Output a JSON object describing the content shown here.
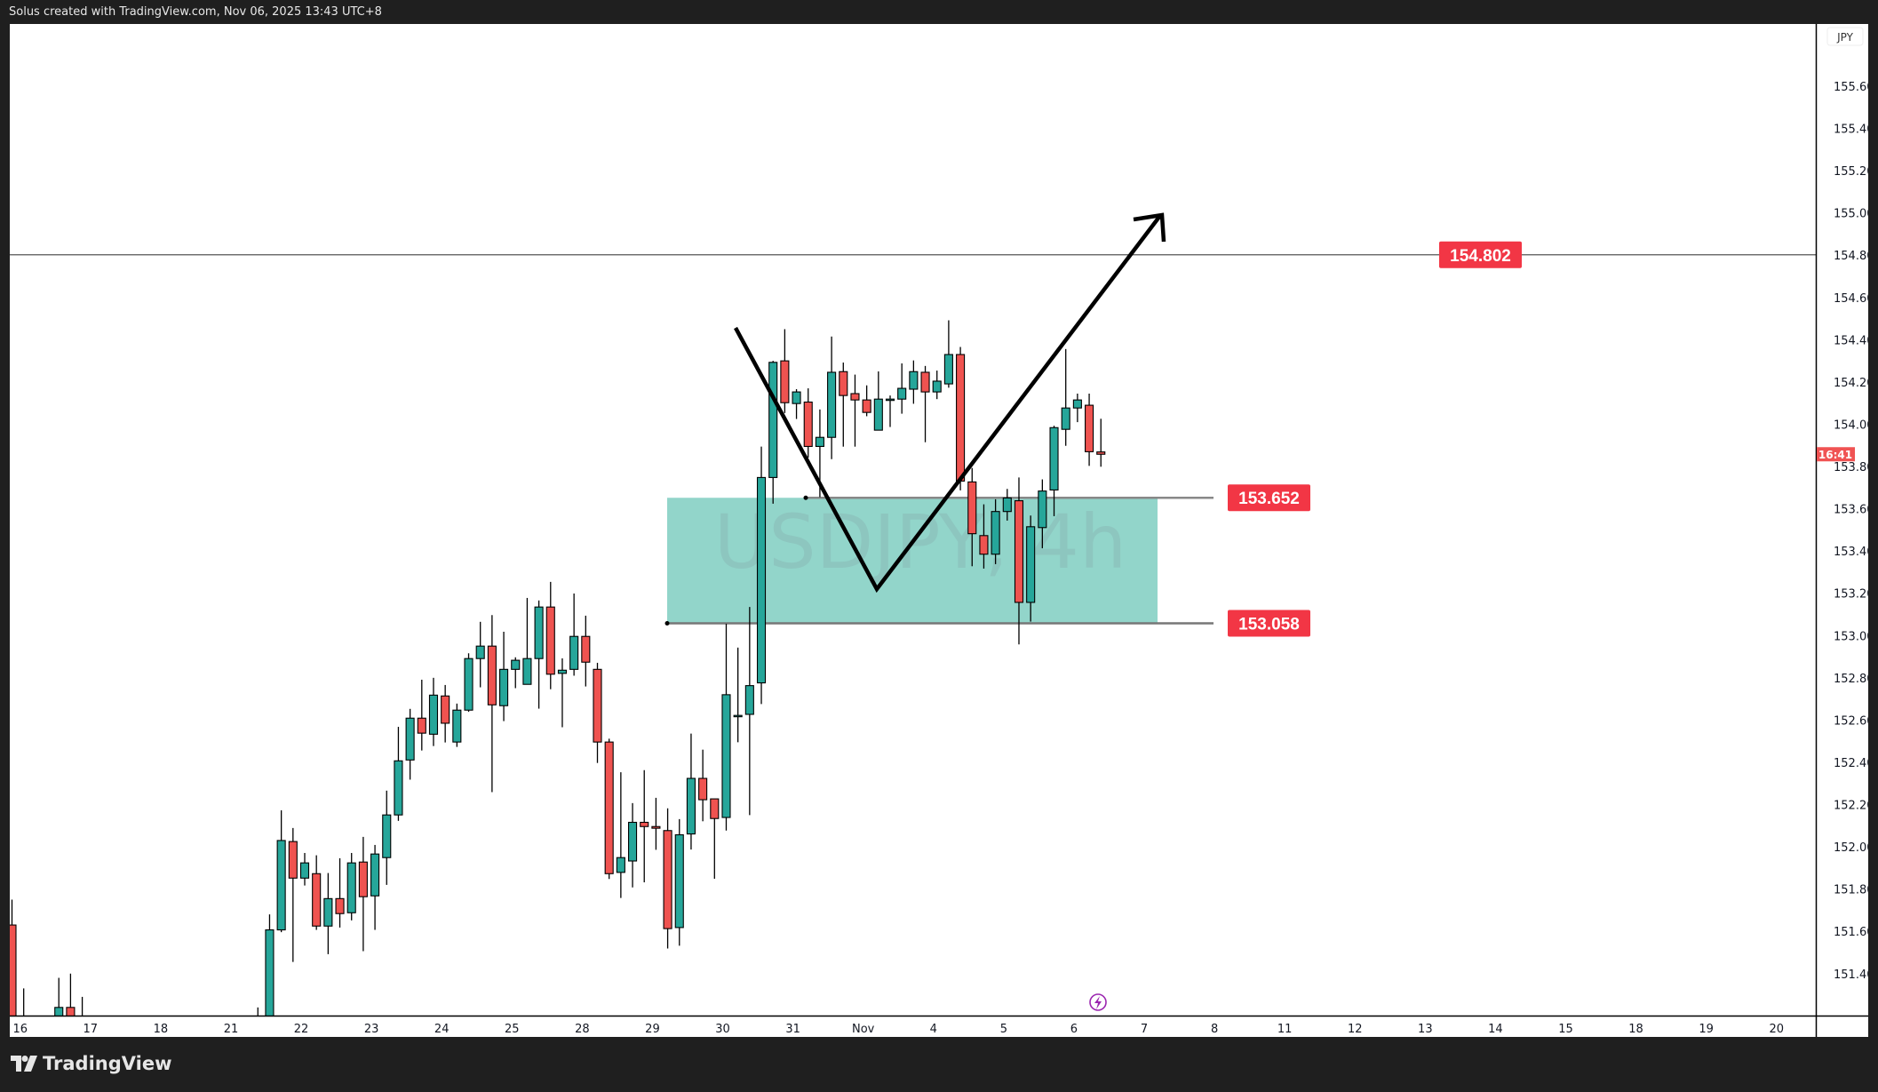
{
  "header": {
    "caption": "Solus created with TradingView.com, Nov 06, 2025 13:43 UTC+8"
  },
  "footer": {
    "brand": "TradingView"
  },
  "colors": {
    "up": "#26a69a",
    "down": "#ef5350",
    "zone": "#92d5ca",
    "label": "#f23645",
    "countdown": "#f05353",
    "lightning": "#9c27b0"
  },
  "chart_data": {
    "type": "candlestick",
    "symbol_watermark": "USDJPY, 4h",
    "currency": "JPY",
    "ylim": [
      151.2,
      155.75
    ],
    "y_ticks": [
      "155.600",
      "155.400",
      "155.200",
      "155.000",
      "154.800",
      "154.600",
      "154.400",
      "154.200",
      "154.000",
      "153.800",
      "153.600",
      "153.400",
      "153.200",
      "153.000",
      "152.800",
      "152.600",
      "152.400",
      "152.200",
      "152.000",
      "151.800",
      "151.600",
      "151.400"
    ],
    "x_ticks": [
      "16",
      "17",
      "18",
      "21",
      "22",
      "23",
      "24",
      "25",
      "28",
      "29",
      "30",
      "31",
      "Nov",
      "4",
      "5",
      "6",
      "7",
      "8",
      "11",
      "12",
      "13",
      "14",
      "15",
      "18",
      "19",
      "20"
    ],
    "countdown": "16:41",
    "candle_fields": [
      "open",
      "high",
      "low",
      "close"
    ],
    "candles": [
      [
        151.63,
        151.75,
        151.0,
        151.0
      ],
      [
        150.9,
        151.33,
        150.8,
        151.0
      ],
      null,
      null,
      [
        151.0,
        151.38,
        150.9,
        151.24
      ],
      [
        151.24,
        151.4,
        150.9,
        151.05
      ],
      [
        151.0,
        151.29,
        150.9,
        151.05
      ],
      null,
      null,
      null,
      null,
      null,
      null,
      null,
      null,
      null,
      null,
      null,
      null,
      null,
      null,
      [
        151.0,
        151.24,
        150.8,
        151.15
      ],
      [
        151.0,
        151.68,
        150.9,
        151.607
      ],
      [
        151.607,
        152.173,
        151.596,
        152.03
      ],
      [
        152.025,
        152.089,
        151.455,
        151.852
      ],
      [
        151.852,
        151.971,
        151.817,
        151.924
      ],
      [
        151.873,
        151.96,
        151.607,
        151.625
      ],
      [
        151.625,
        151.876,
        151.492,
        151.755
      ],
      [
        151.755,
        151.946,
        151.618,
        151.684
      ],
      [
        151.688,
        151.971,
        151.652,
        151.924
      ],
      [
        151.928,
        152.047,
        151.506,
        151.764
      ],
      [
        151.768,
        152.009,
        151.607,
        151.966
      ],
      [
        151.949,
        152.266,
        151.82,
        152.151
      ],
      [
        152.151,
        152.568,
        152.123,
        152.407
      ],
      [
        152.411,
        152.653,
        152.318,
        152.609
      ],
      [
        152.609,
        152.791,
        152.456,
        152.538
      ],
      [
        152.533,
        152.8,
        152.477,
        152.718
      ],
      [
        152.714,
        152.766,
        152.494,
        152.585
      ],
      [
        152.496,
        152.678,
        152.473,
        152.647
      ],
      [
        152.647,
        152.916,
        152.639,
        152.891
      ],
      [
        152.891,
        153.065,
        152.755,
        152.95
      ],
      [
        152.95,
        153.097,
        152.259,
        152.672
      ],
      [
        152.668,
        153.018,
        152.595,
        152.84
      ],
      [
        152.84,
        152.897,
        152.751,
        152.883
      ],
      [
        152.769,
        153.178,
        152.768,
        152.891
      ],
      [
        152.891,
        153.166,
        152.654,
        153.135
      ],
      [
        153.135,
        153.254,
        152.746,
        152.817
      ],
      [
        152.821,
        152.892,
        152.566,
        152.836
      ],
      [
        152.84,
        153.199,
        152.81,
        152.996
      ],
      [
        152.996,
        153.094,
        152.759,
        152.874
      ],
      [
        152.84,
        152.871,
        152.397,
        152.496
      ],
      [
        152.496,
        152.512,
        151.848,
        151.873
      ],
      [
        151.879,
        152.353,
        151.758,
        151.949
      ],
      [
        151.933,
        152.207,
        151.808,
        152.116
      ],
      [
        152.116,
        152.363,
        151.832,
        152.096
      ],
      [
        152.096,
        152.232,
        151.986,
        152.088
      ],
      [
        152.077,
        152.182,
        151.519,
        151.613
      ],
      [
        151.618,
        152.131,
        151.532,
        152.057
      ],
      [
        152.061,
        152.536,
        151.987,
        152.324
      ],
      [
        152.324,
        152.46,
        152.121,
        152.223
      ],
      [
        152.227,
        152.227,
        151.849,
        152.134
      ],
      [
        152.139,
        153.056,
        152.077,
        152.72
      ],
      [
        152.622,
        152.943,
        152.495,
        152.622
      ],
      [
        152.627,
        153.135,
        152.15,
        152.763
      ],
      [
        152.776,
        153.894,
        152.676,
        153.748
      ],
      [
        153.748,
        154.3,
        153.624,
        154.293
      ],
      [
        154.3,
        154.45,
        154.053,
        154.102
      ],
      [
        154.098,
        154.166,
        154.025,
        154.153
      ],
      [
        154.105,
        154.17,
        153.842,
        153.895
      ],
      [
        153.895,
        154.07,
        153.655,
        153.938
      ],
      [
        153.938,
        154.415,
        153.835,
        154.246
      ],
      [
        154.249,
        154.292,
        153.894,
        154.136
      ],
      [
        154.145,
        154.235,
        153.894,
        154.115
      ],
      [
        154.115,
        154.184,
        154.038,
        154.056
      ],
      [
        153.972,
        154.25,
        153.972,
        154.119
      ],
      [
        154.119,
        154.136,
        153.987,
        154.119
      ],
      [
        154.119,
        154.288,
        154.05,
        154.17
      ],
      [
        154.166,
        154.302,
        154.097,
        154.249
      ],
      [
        154.246,
        154.276,
        153.915,
        154.153
      ],
      [
        154.153,
        154.254,
        154.119,
        154.204
      ],
      [
        154.191,
        154.492,
        154.173,
        154.33
      ],
      [
        154.33,
        154.366,
        153.687,
        153.731
      ],
      [
        153.727,
        153.793,
        153.328,
        153.482
      ],
      [
        153.473,
        153.621,
        153.317,
        153.385
      ],
      [
        153.385,
        153.645,
        153.338,
        153.587
      ],
      [
        153.587,
        153.694,
        153.544,
        153.651
      ],
      [
        153.638,
        153.748,
        152.958,
        153.157
      ],
      [
        153.157,
        153.568,
        153.066,
        153.515
      ],
      [
        153.511,
        153.739,
        153.413,
        153.684
      ],
      [
        153.689,
        153.993,
        153.565,
        153.984
      ],
      [
        153.976,
        154.356,
        153.898,
        154.077
      ],
      [
        154.077,
        154.145,
        154.01,
        154.115
      ],
      [
        154.09,
        154.145,
        153.803,
        153.87
      ],
      [
        153.869,
        154.026,
        153.799,
        153.858
      ]
    ],
    "horizontal_lines": [
      {
        "price": 154.802,
        "label": "154.802"
      },
      {
        "price": 153.652,
        "label": "153.652"
      },
      {
        "price": 153.058,
        "label": "153.058"
      }
    ],
    "zone": {
      "top": 153.652,
      "bottom": 153.058
    },
    "annotation": "V-shaped path with upward arrow"
  }
}
